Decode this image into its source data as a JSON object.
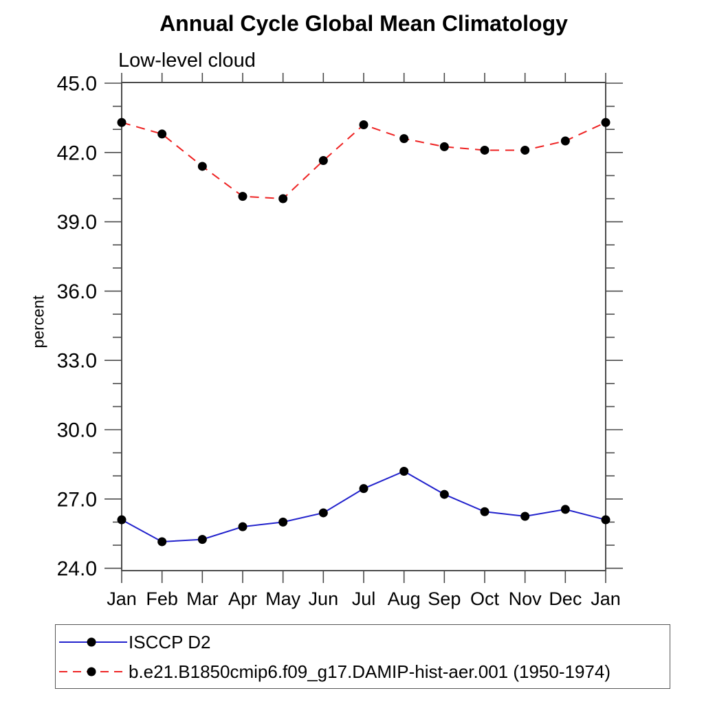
{
  "page": {
    "background": "#ffffff"
  },
  "chart_data": {
    "type": "line",
    "title": "Annual Cycle Global Mean Climatology",
    "subtitle": "Low-level cloud",
    "ylabel": "percent",
    "xlabel": "",
    "categories": [
      "Jan",
      "Feb",
      "Mar",
      "Apr",
      "May",
      "Jun",
      "Jul",
      "Aug",
      "Sep",
      "Oct",
      "Nov",
      "Dec",
      "Jan"
    ],
    "ylim": [
      24.0,
      45.0
    ],
    "ytick_major_interval": 3.0,
    "ytick_minor_interval": 1.0,
    "ytick_labels": [
      "24.0",
      "27.0",
      "30.0",
      "33.0",
      "36.0",
      "39.0",
      "42.0",
      "45.0"
    ],
    "grid": false,
    "legend_position": "bottom-left-box",
    "axis_color": "#4a4a4a",
    "marker_color": "#000000",
    "series": [
      {
        "name": "ISCCP D2",
        "color": "#2222cc",
        "style": "solid",
        "marker": "filled-circle",
        "values": [
          26.1,
          25.15,
          25.25,
          25.8,
          26.0,
          26.4,
          27.45,
          28.2,
          27.2,
          26.45,
          26.25,
          26.55,
          26.1
        ]
      },
      {
        "name": "b.e21.B1850cmip6.f09_g17.DAMIP-hist-aer.001 (1950-1974)",
        "color": "#ee2222",
        "style": "dashed",
        "marker": "filled-circle",
        "values": [
          43.3,
          42.8,
          41.4,
          40.1,
          40.0,
          41.65,
          43.2,
          42.6,
          42.25,
          42.1,
          42.1,
          42.5,
          43.3
        ]
      }
    ]
  }
}
